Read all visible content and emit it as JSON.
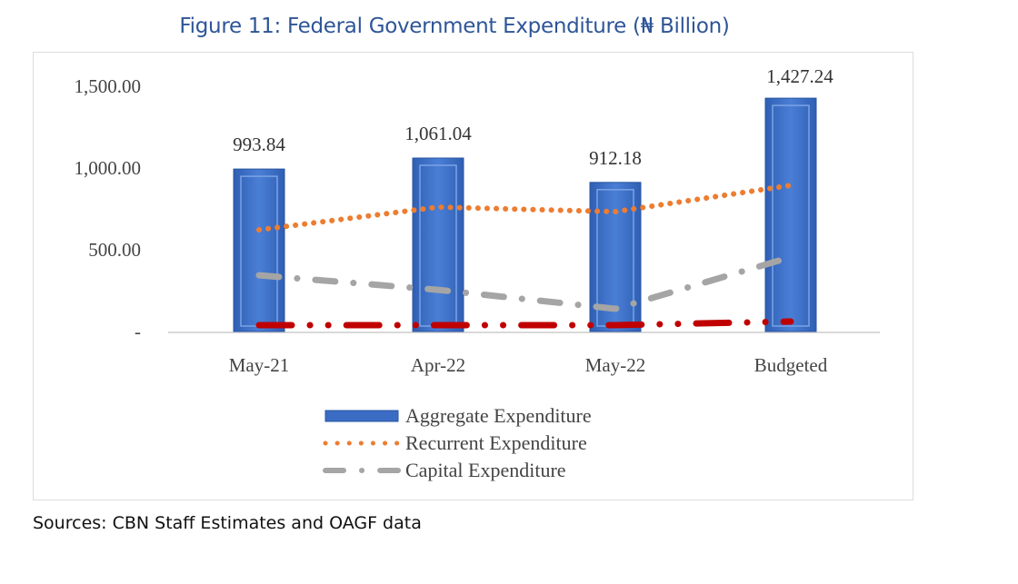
{
  "chart_data": {
    "type": "bar",
    "title": "Figure 11: Federal Government Expenditure (₦ Billion)",
    "categories": [
      "May-21",
      "Apr-22",
      "May-22",
      "Budgeted"
    ],
    "yticks": [
      "-",
      "500.00",
      "1,000.00",
      "1,500.00"
    ],
    "ylim": [
      0,
      1500
    ],
    "grid": false,
    "legend_position": "bottom",
    "series": [
      {
        "name": "Aggregate Expenditure",
        "type": "bar",
        "color": "#3a6cc4",
        "values": [
          993.84,
          1061.04,
          912.18,
          1427.24
        ],
        "labels": [
          "993.84",
          "1,061.04",
          "912.18",
          "1,427.24"
        ]
      },
      {
        "name": "Recurrent Expenditure",
        "type": "line",
        "style": "dotted",
        "color": "#ed7d31",
        "values": [
          622,
          761,
          733,
          894
        ]
      },
      {
        "name": "Capital Expenditure",
        "type": "line",
        "style": "dash-dot",
        "color": "#a5a5a5",
        "values": [
          344,
          255,
          139,
          455
        ]
      },
      {
        "type": "line",
        "style": "dash-dot-dot",
        "color": "#c00000",
        "values": [
          39,
          39,
          39,
          61
        ]
      }
    ]
  },
  "source": {
    "label": "Sources",
    "text": ": CBN Staff Estimates and OAGF data"
  }
}
